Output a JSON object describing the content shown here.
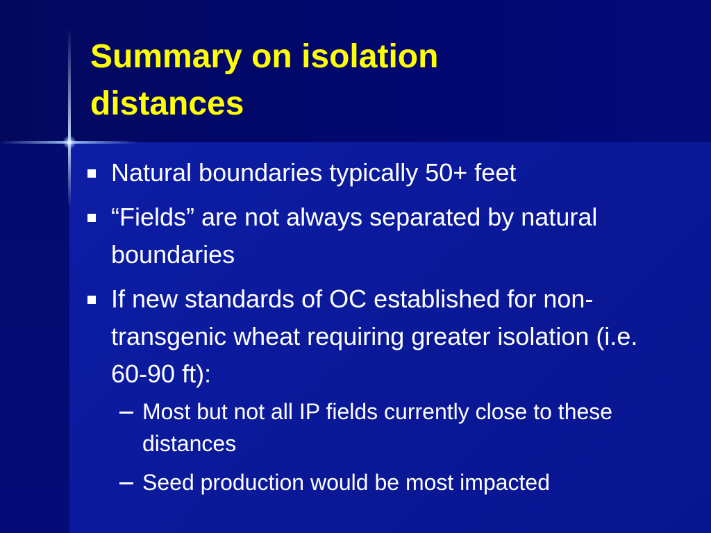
{
  "title": "Summary on isolation distances",
  "bullets": [
    {
      "text": "Natural boundaries typically 50+ feet"
    },
    {
      "text": "“Fields” are not always separated by natural boundaries"
    },
    {
      "text": "If new standards of OC established for non-transgenic wheat requiring greater isolation (i.e. 60-90 ft):",
      "sub_bullets": [
        "Most but not all IP fields currently close to these distances",
        "Seed production would be most impacted"
      ]
    }
  ]
}
